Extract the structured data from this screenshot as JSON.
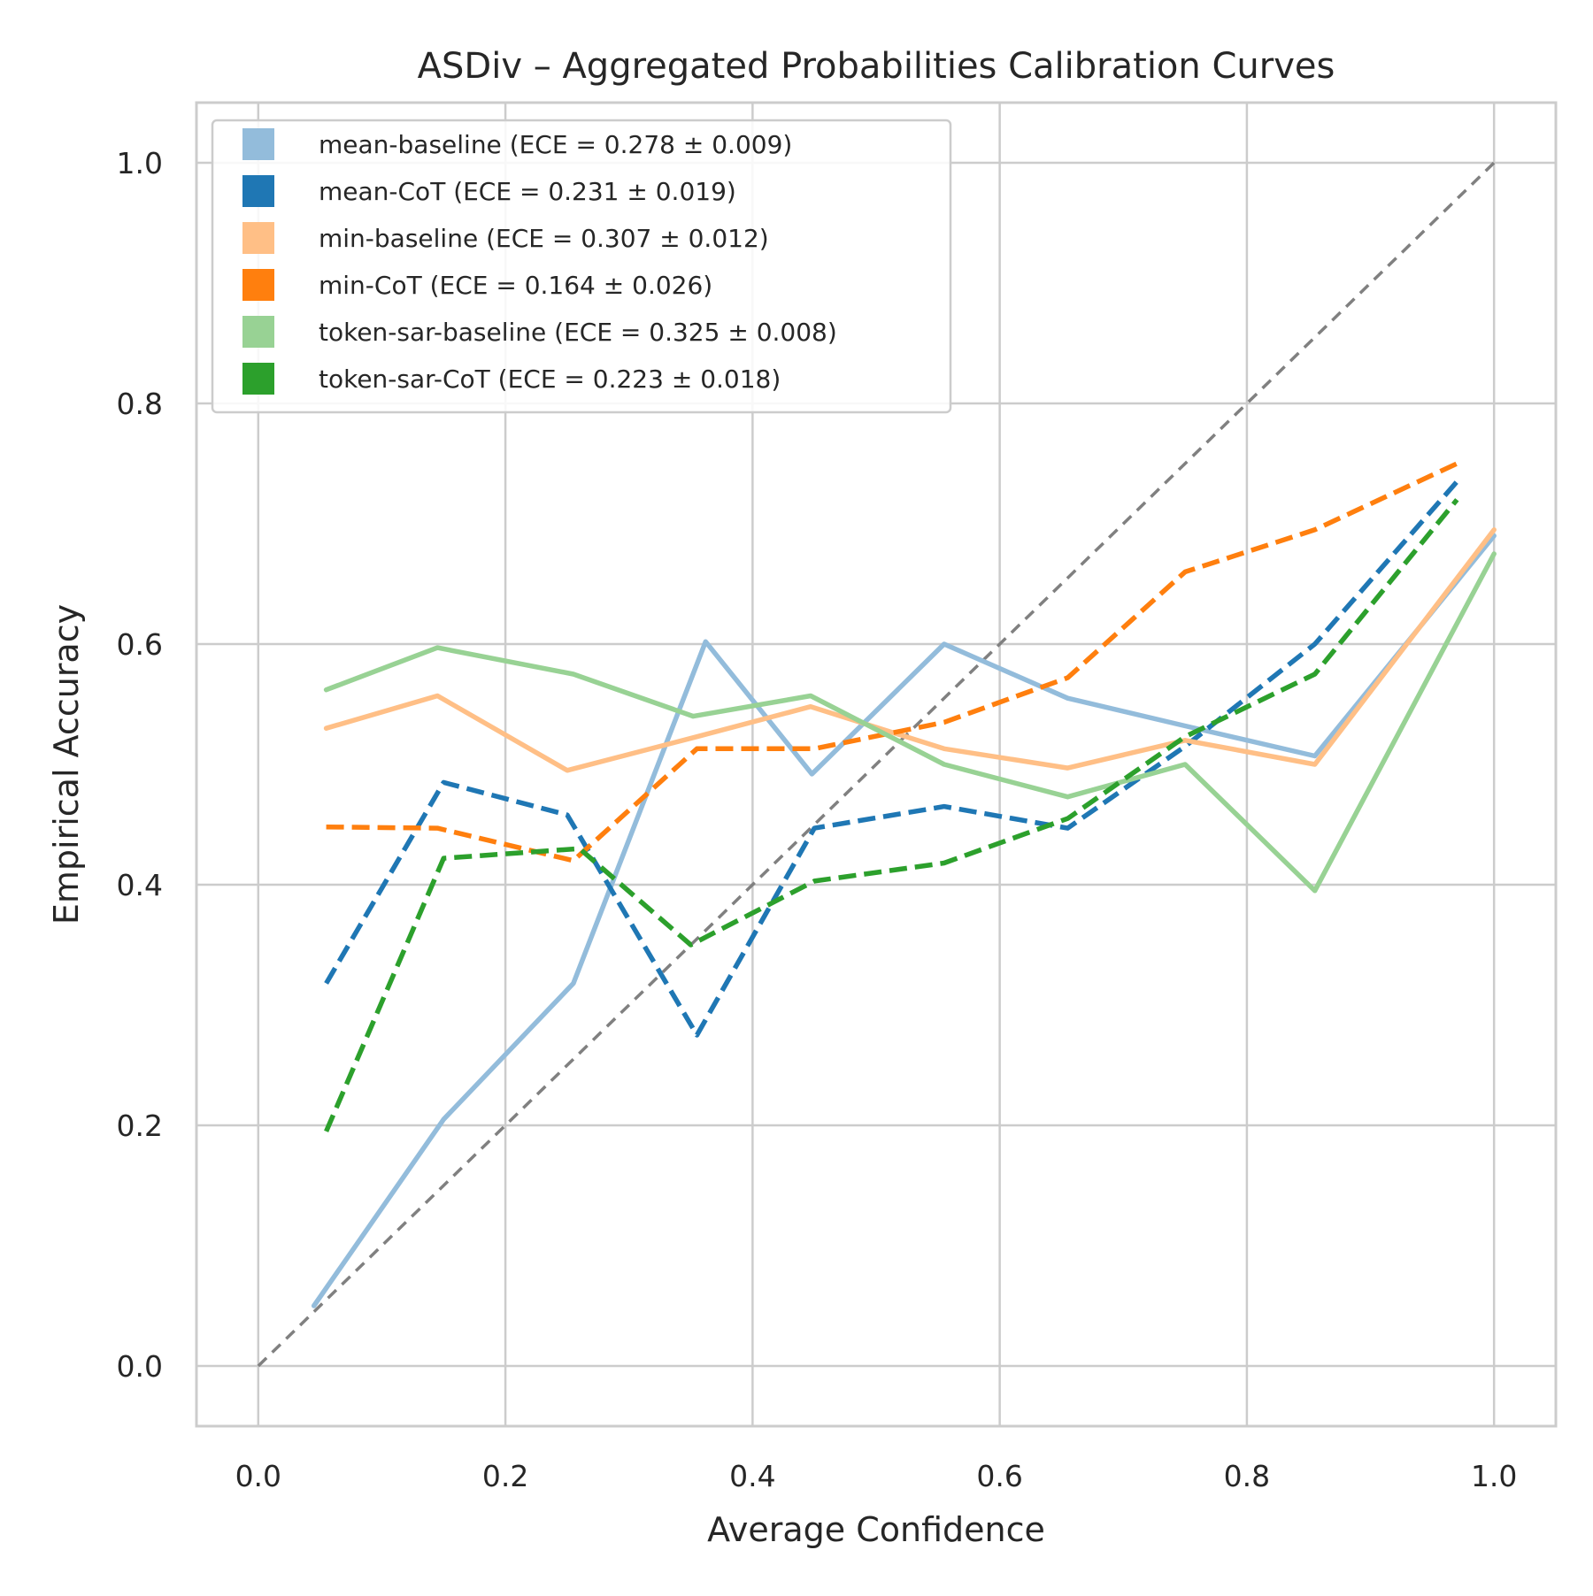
{
  "chart_data": {
    "type": "line",
    "title": "ASDiv – Aggregated Probabilities Calibration Curves",
    "xlabel": "Average Confidence",
    "ylabel": "Empirical Accuracy",
    "xlim": [
      -0.05,
      1.05
    ],
    "ylim": [
      -0.05,
      1.05
    ],
    "xticks": [
      0.0,
      0.2,
      0.4,
      0.6,
      0.8,
      1.0
    ],
    "yticks": [
      0.0,
      0.2,
      0.4,
      0.6,
      0.8,
      1.0
    ],
    "xtick_labels": [
      "0.0",
      "0.2",
      "0.4",
      "0.6",
      "0.8",
      "1.0"
    ],
    "ytick_labels": [
      "0.0",
      "0.2",
      "0.4",
      "0.6",
      "0.8",
      "1.0"
    ],
    "grid": true,
    "legend_position": "top-left",
    "reference_line": {
      "x": [
        0.0,
        1.0
      ],
      "y": [
        0.0,
        1.0
      ],
      "color": "#808080",
      "style": "dashed"
    },
    "series": [
      {
        "name": "mean-baseline (ECE = 0.278 ± 0.009)",
        "color": "#93bcdb",
        "style": "solid",
        "x": [
          0.045,
          0.15,
          0.255,
          0.362,
          0.448,
          0.555,
          0.655,
          0.75,
          0.855,
          1.0
        ],
        "y": [
          0.05,
          0.205,
          0.318,
          0.602,
          0.492,
          0.6,
          0.555,
          0.532,
          0.507,
          0.69
        ]
      },
      {
        "name": "mean-CoT (ECE = 0.231 ± 0.019)",
        "color": "#1f77b4",
        "style": "dashed",
        "x": [
          0.055,
          0.15,
          0.25,
          0.355,
          0.45,
          0.555,
          0.655,
          0.75,
          0.855,
          0.97
        ],
        "y": [
          0.318,
          0.485,
          0.458,
          0.275,
          0.447,
          0.465,
          0.447,
          0.515,
          0.6,
          0.735
        ]
      },
      {
        "name": "min-baseline (ECE = 0.307 ± 0.012)",
        "color": "#ffbf86",
        "style": "solid",
        "x": [
          0.055,
          0.145,
          0.25,
          0.355,
          0.447,
          0.555,
          0.655,
          0.75,
          0.855,
          1.0
        ],
        "y": [
          0.53,
          0.557,
          0.495,
          0.523,
          0.548,
          0.513,
          0.497,
          0.52,
          0.5,
          0.695
        ]
      },
      {
        "name": "min-CoT (ECE = 0.164 ± 0.026)",
        "color": "#ff7f0e",
        "style": "dashed",
        "x": [
          0.055,
          0.145,
          0.255,
          0.355,
          0.45,
          0.555,
          0.655,
          0.75,
          0.855,
          0.97
        ],
        "y": [
          0.448,
          0.447,
          0.42,
          0.513,
          0.513,
          0.535,
          0.572,
          0.66,
          0.695,
          0.75
        ]
      },
      {
        "name": "token-sar-baseline (ECE = 0.325 ± 0.008)",
        "color": "#98d294",
        "style": "solid",
        "x": [
          0.055,
          0.145,
          0.255,
          0.352,
          0.447,
          0.555,
          0.655,
          0.75,
          0.855,
          1.0
        ],
        "y": [
          0.562,
          0.597,
          0.575,
          0.54,
          0.557,
          0.5,
          0.473,
          0.5,
          0.395,
          0.675
        ]
      },
      {
        "name": "token-sar-CoT (ECE = 0.223 ± 0.018)",
        "color": "#2ca02c",
        "style": "dashed",
        "x": [
          0.055,
          0.15,
          0.26,
          0.35,
          0.45,
          0.555,
          0.655,
          0.75,
          0.855,
          0.97
        ],
        "y": [
          0.195,
          0.422,
          0.43,
          0.35,
          0.403,
          0.418,
          0.455,
          0.523,
          0.575,
          0.72
        ]
      }
    ]
  }
}
